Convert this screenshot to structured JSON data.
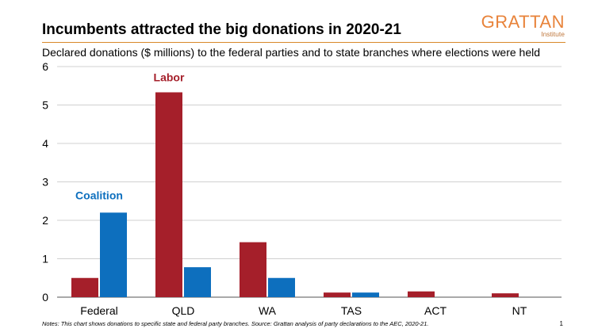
{
  "header": {
    "title": "Incumbents attracted the big donations in 2020-21",
    "subtitle": "Declared donations ($ millions) to the federal parties and to state branches where elections were held"
  },
  "logo": {
    "brand": "GRATTAN",
    "institute": "Institute"
  },
  "footer": {
    "notes": "Notes: This chart shows donations to specific state and federal party branches. Source: Grattan analysis of party declarations to the AEC, 2020-21.",
    "page": "1"
  },
  "colors": {
    "labor": "#a51f2a",
    "coalition": "#0d6fbe",
    "accent": "#d9892a"
  },
  "chart_data": {
    "type": "bar",
    "categories": [
      "Federal",
      "QLD",
      "WA",
      "TAS",
      "ACT",
      "NT"
    ],
    "series": [
      {
        "name": "Labor",
        "values": [
          0.5,
          5.33,
          1.43,
          0.12,
          0.15,
          0.1
        ]
      },
      {
        "name": "Coalition",
        "values": [
          2.2,
          0.78,
          0.5,
          0.12,
          0,
          0
        ]
      }
    ],
    "ylim": [
      0,
      6
    ],
    "yticks": [
      "0",
      "1",
      "2",
      "3",
      "4",
      "5",
      "6"
    ],
    "grid": true,
    "legend": "inline labels above bars"
  }
}
